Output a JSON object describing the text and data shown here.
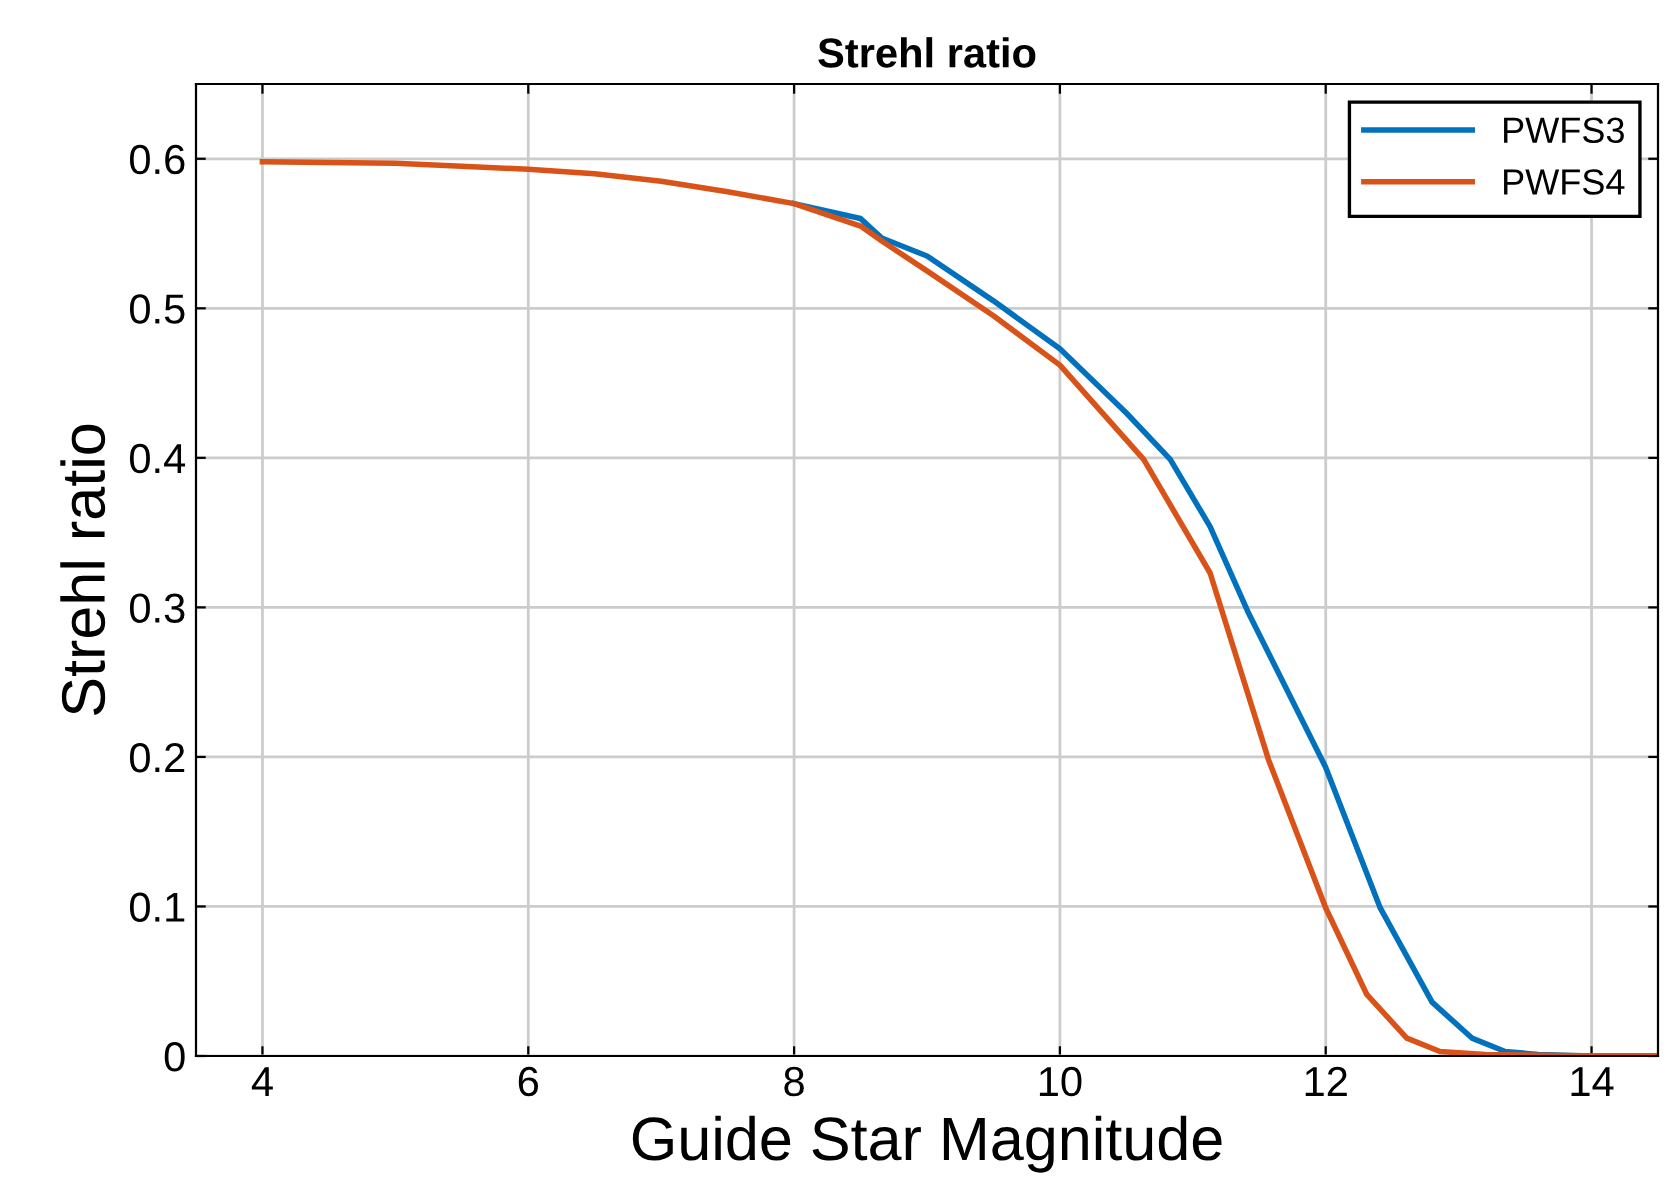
{
  "chart_data": {
    "type": "line",
    "title": "Strehl ratio",
    "xlabel": "Guide Star Magnitude",
    "ylabel": "Strehl ratio",
    "xlim": [
      3.5,
      14.5
    ],
    "xticks": [
      4,
      6,
      8,
      10,
      12,
      14
    ],
    "ylim": [
      0,
      0.65
    ],
    "yticks": [
      0,
      0.1,
      0.2,
      0.3,
      0.4,
      0.5,
      0.6
    ],
    "grid": true,
    "legend": "top right",
    "marker": "none",
    "line_style": "solid",
    "series": [
      {
        "name": "PWFS3",
        "color": "#0072bd",
        "x": [
          8,
          8.5,
          8.66,
          9,
          9.5,
          10,
          10.5,
          10.83,
          11.13,
          11.42,
          12.0,
          12.41,
          12.8,
          13.1,
          13.35,
          13.6,
          14,
          14.5
        ],
        "values": [
          0.57,
          0.56,
          0.547,
          0.535,
          0.505,
          0.473,
          0.43,
          0.399,
          0.354,
          0.296,
          0.193,
          0.099,
          0.036,
          0.012,
          0.003,
          0.001,
          0,
          0
        ]
      },
      {
        "name": "PWFS4",
        "color": "#d95319",
        "x": [
          4,
          5,
          5.5,
          6,
          6.5,
          7,
          7.5,
          8,
          8.5,
          8.66,
          9,
          9.5,
          10,
          10.63,
          11.13,
          11.57,
          12.0,
          12.31,
          12.61,
          12.86,
          13.2,
          14,
          14.5
        ],
        "values": [
          0.598,
          0.597,
          0.595,
          0.593,
          0.59,
          0.585,
          0.578,
          0.57,
          0.555,
          0.545,
          0.525,
          0.495,
          0.462,
          0.399,
          0.323,
          0.198,
          0.099,
          0.041,
          0.012,
          0.003,
          0.001,
          0,
          0
        ]
      }
    ]
  }
}
